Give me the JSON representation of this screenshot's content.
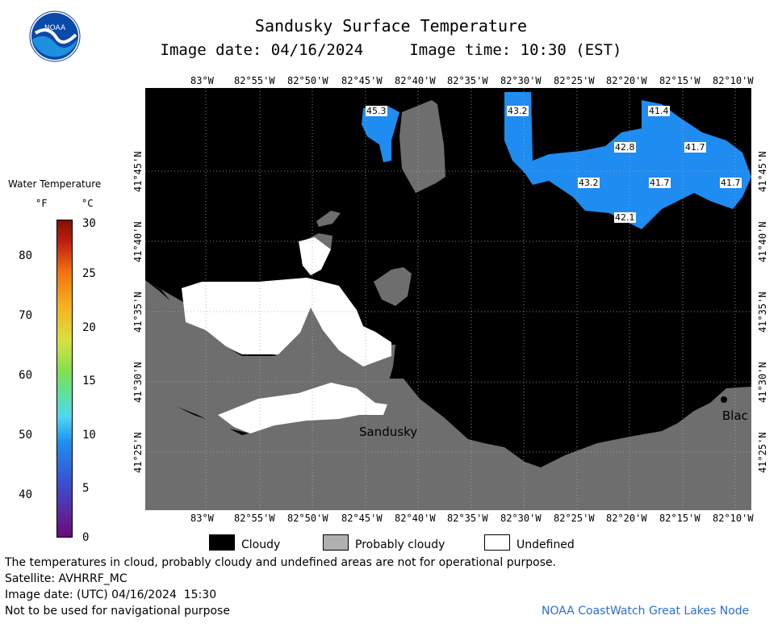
{
  "title": "Sandusky Surface Temperature",
  "subtitle": "Image date: 04/16/2024     Image time: 10:30 (EST)",
  "logo_text": "NOAA",
  "colorbar": {
    "title": "Water Temperature",
    "unit_f": "°F",
    "unit_c": "°C",
    "f_ticks": [
      "80",
      "70",
      "60",
      "50",
      "40"
    ],
    "c_ticks": [
      "30",
      "25",
      "20",
      "15",
      "10",
      "5",
      "0"
    ]
  },
  "lon_labels": [
    "83°W",
    "82°55'W",
    "82°50'W",
    "82°45'W",
    "82°40'W",
    "82°35'W",
    "82°30'W",
    "82°25'W",
    "82°20'W",
    "82°15'W",
    "82°10'W"
  ],
  "lat_labels": [
    "41°45'N",
    "41°40'N",
    "41°35'N",
    "41°30'N",
    "41°25'N"
  ],
  "temp_labels": [
    "45.3",
    "43.2",
    "41.4",
    "42.8",
    "41.7",
    "43.2",
    "41.7",
    "41.7",
    "42.1"
  ],
  "place_labels": {
    "sandusky": "Sandusky",
    "blac": "Blac"
  },
  "legend": {
    "cloudy": "Cloudy",
    "probably_cloudy": "Probably cloudy",
    "undefined": "Undefined"
  },
  "colors": {
    "cloudy": "#000000",
    "land": "#6e6e6e",
    "undefined": "#ffffff",
    "water_warm": "#1e8cf0"
  },
  "footer": {
    "note": "The temperatures in cloud, probably cloudy and undefined areas are not for operational purpose.",
    "satellite": "Satellite: AVHRRF_MC",
    "utc": "Image date: (UTC) 04/16/2024  15:30",
    "nav": "Not to be used for navigational purpose",
    "node": "NOAA CoastWatch Great Lakes Node"
  }
}
